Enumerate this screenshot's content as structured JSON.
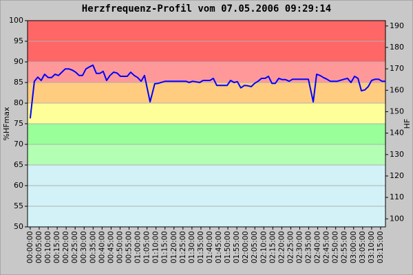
{
  "chart_data": {
    "type": "line",
    "title": "Herzfrequenz-Profil vom 07.05.2006 09:29:14",
    "ylabel": "%HFmax",
    "y2label": "HF",
    "ylim": [
      50,
      100
    ],
    "yticks": [
      50,
      55,
      60,
      65,
      70,
      75,
      80,
      85,
      90,
      95,
      100
    ],
    "y2lim": [
      96.25,
      192.5
    ],
    "y2ticks": [
      100,
      110,
      120,
      130,
      140,
      150,
      160,
      170,
      180,
      190
    ],
    "xlim": [
      -1.5,
      197.7
    ],
    "xticks": [
      {
        "value": 0,
        "label": "00:00:00"
      },
      {
        "value": 5,
        "label": "00:05:00"
      },
      {
        "value": 10,
        "label": "00:10:00"
      },
      {
        "value": 15,
        "label": "00:15:00"
      },
      {
        "value": 20,
        "label": "00:20:00"
      },
      {
        "value": 25,
        "label": "00:25:00"
      },
      {
        "value": 30,
        "label": "00:30:00"
      },
      {
        "value": 35,
        "label": "00:35:00"
      },
      {
        "value": 40,
        "label": "00:40:00"
      },
      {
        "value": 45,
        "label": "00:45:00"
      },
      {
        "value": 50,
        "label": "00:50:00"
      },
      {
        "value": 55,
        "label": "00:55:00"
      },
      {
        "value": 60,
        "label": "01:00:00"
      },
      {
        "value": 65,
        "label": "01:05:00"
      },
      {
        "value": 70,
        "label": "01:10:00"
      },
      {
        "value": 75,
        "label": "01:15:00"
      },
      {
        "value": 80,
        "label": "01:20:00"
      },
      {
        "value": 85,
        "label": "01:25:00"
      },
      {
        "value": 90,
        "label": "01:30:00"
      },
      {
        "value": 95,
        "label": "01:35:00"
      },
      {
        "value": 100,
        "label": "01:40:00"
      },
      {
        "value": 105,
        "label": "01:45:00"
      },
      {
        "value": 110,
        "label": "01:50:00"
      },
      {
        "value": 115,
        "label": "01:55:00"
      },
      {
        "value": 120,
        "label": "02:00:00"
      },
      {
        "value": 125,
        "label": "02:05:00"
      },
      {
        "value": 130,
        "label": "02:10:00"
      },
      {
        "value": 135,
        "label": "02:15:00"
      },
      {
        "value": 140,
        "label": "02:20:00"
      },
      {
        "value": 145,
        "label": "02:25:00"
      },
      {
        "value": 150,
        "label": "02:30:00"
      },
      {
        "value": 155,
        "label": "02:35:00"
      },
      {
        "value": 160,
        "label": "02:40:00"
      },
      {
        "value": 165,
        "label": "02:45:00"
      },
      {
        "value": 170,
        "label": "02:50:00"
      },
      {
        "value": 175,
        "label": "02:55:00"
      },
      {
        "value": 180,
        "label": "03:00:00"
      },
      {
        "value": 185,
        "label": "03:05:00"
      },
      {
        "value": 190,
        "label": "03:10:00"
      },
      {
        "value": 195,
        "label": "03:15:00"
      }
    ],
    "zones": [
      {
        "from": 90,
        "to": 100,
        "color": "#ff6666"
      },
      {
        "from": 85,
        "to": 90,
        "color": "#ff9999"
      },
      {
        "from": 80,
        "to": 85,
        "color": "#ffcc80"
      },
      {
        "from": 75,
        "to": 80,
        "color": "#ffff99"
      },
      {
        "from": 70,
        "to": 75,
        "color": "#99ff99"
      },
      {
        "from": 65,
        "to": 70,
        "color": "#b3ffb3"
      },
      {
        "from": 50,
        "to": 65,
        "color": "#d2f2f8"
      }
    ],
    "grid": true,
    "series": [
      {
        "color": "#0000ff",
        "x": [
          0,
          2.3,
          4.2,
          6.1,
          8.0,
          10.0,
          11.9,
          13.8,
          15.7,
          17.6,
          19.5,
          21.5,
          23.4,
          25.3,
          27.2,
          29.1,
          31.0,
          33.0,
          34.9,
          36.8,
          38.7,
          40.6,
          42.5,
          44.4,
          46.4,
          48.3,
          50.2,
          52.1,
          54.0,
          55.9,
          57.9,
          59.8,
          61.7,
          63.6,
          66.7,
          69.3,
          71.3,
          75.1,
          78.9,
          82.8,
          86.6,
          88.5,
          90.4,
          94.3,
          96.2,
          100.0,
          101.9,
          103.8,
          107.7,
          109.6,
          111.5,
          113.4,
          115.3,
          117.2,
          119.2,
          121.1,
          123.0,
          124.9,
          126.8,
          128.7,
          130.7,
          132.6,
          134.5,
          136.4,
          138.3,
          140.2,
          142.1,
          144.1,
          146.0,
          147.9,
          151.7,
          154.8,
          157.5,
          159.4,
          161.3,
          163.2,
          165.1,
          167.0,
          170.9,
          174.7,
          176.6,
          178.5,
          180.5,
          182.4,
          184.3,
          186.2,
          188.1,
          190.0,
          192.0,
          193.9,
          195.8,
          197.7
        ],
        "values": [
          76.3,
          85.3,
          86.3,
          85.5,
          87.0,
          86.2,
          86.2,
          87.0,
          86.7,
          87.5,
          88.3,
          88.3,
          88.0,
          87.5,
          86.7,
          86.7,
          88.3,
          88.8,
          89.2,
          87.2,
          87.2,
          87.7,
          85.5,
          86.7,
          87.5,
          87.3,
          86.5,
          86.5,
          86.5,
          87.5,
          86.7,
          86.2,
          85.3,
          86.7,
          80.3,
          84.7,
          84.8,
          85.3,
          85.3,
          85.3,
          85.3,
          85.0,
          85.3,
          85.0,
          85.5,
          85.5,
          86.0,
          84.3,
          84.3,
          84.3,
          85.5,
          85.0,
          85.2,
          83.7,
          84.3,
          84.2,
          84.0,
          84.8,
          85.3,
          86.0,
          86.0,
          86.5,
          84.8,
          84.8,
          86.0,
          85.7,
          85.7,
          85.3,
          85.8,
          85.8,
          85.8,
          85.8,
          80.3,
          87.0,
          86.7,
          86.2,
          85.8,
          85.3,
          85.3,
          85.8,
          86.0,
          85.0,
          86.5,
          86.0,
          83.0,
          83.2,
          84.0,
          85.5,
          85.8,
          85.8,
          85.3,
          85.3
        ]
      }
    ]
  }
}
